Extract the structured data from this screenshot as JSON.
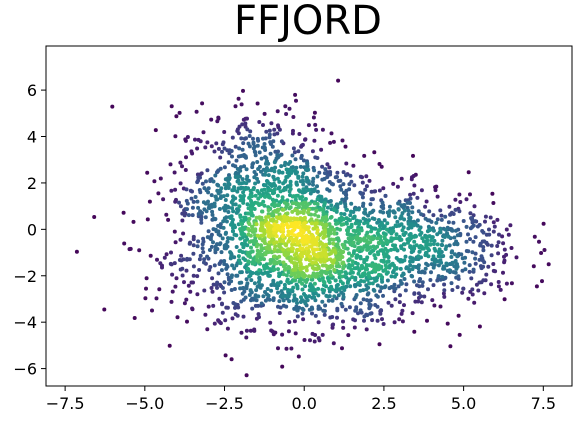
{
  "chart_data": {
    "type": "scatter",
    "title": "FFJORD",
    "xlabel": "",
    "ylabel": "",
    "xlim": [
      -8.1,
      8.4
    ],
    "ylim": [
      -6.75,
      7.9
    ],
    "xticks": [
      "−7.5",
      "−5.0",
      "−2.5",
      "0.0",
      "2.5",
      "5.0",
      "7.5"
    ],
    "xtick_values": [
      -7.5,
      -5.0,
      -2.5,
      0.0,
      2.5,
      5.0,
      7.5
    ],
    "yticks": [
      "−6",
      "−4",
      "−2",
      "0",
      "2",
      "4",
      "6"
    ],
    "ytick_values": [
      -6,
      -4,
      -2,
      0,
      2,
      4,
      6
    ],
    "grid": false,
    "legend": "none",
    "colormap": "viridis",
    "color_encoding": "point density",
    "colors": {
      "low_density": "#440154",
      "mid_density": "#21918c",
      "high_density": "#fde725"
    },
    "clusters": [
      {
        "center": [
          0.2,
          -1.2
        ],
        "spread": [
          2.6,
          1.5
        ],
        "share": 0.55
      },
      {
        "center": [
          -1.2,
          1.5
        ],
        "spread": [
          1.9,
          1.8
        ],
        "share": 0.3
      },
      {
        "center": [
          4.0,
          -0.8
        ],
        "spread": [
          1.9,
          1.2
        ],
        "share": 0.15
      }
    ],
    "point_count": 3000
  }
}
